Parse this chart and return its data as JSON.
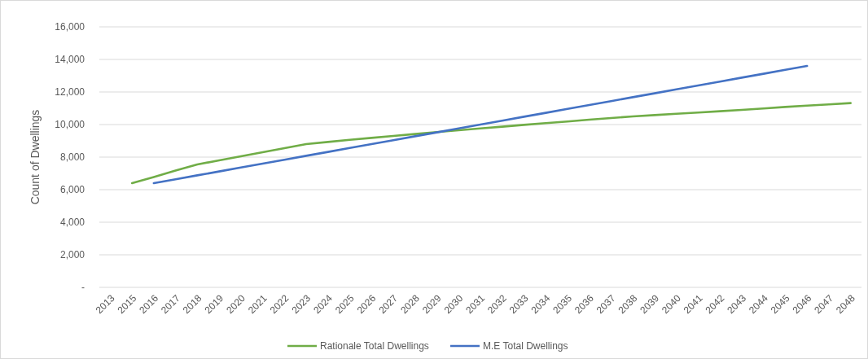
{
  "chart_data": {
    "type": "line",
    "ylabel": "Count of Dwellings",
    "categories": [
      "2013",
      "2015",
      "2016",
      "2017",
      "2018",
      "2019",
      "2020",
      "2021",
      "2022",
      "2023",
      "2024",
      "2025",
      "2026",
      "2027",
      "2028",
      "2029",
      "2030",
      "2031",
      "2032",
      "2033",
      "2034",
      "2035",
      "2036",
      "2037",
      "2038",
      "2039",
      "2040",
      "2041",
      "2042",
      "2043",
      "2044",
      "2045",
      "2046",
      "2047",
      "2048"
    ],
    "series": [
      {
        "name": "Rationale Total Dwellings",
        "color": "#70ad47",
        "values": [
          null,
          6400,
          6780,
          7170,
          7550,
          7800,
          8050,
          8300,
          8550,
          8800,
          8930,
          9060,
          9180,
          9300,
          9420,
          9540,
          9650,
          9760,
          9870,
          9980,
          10090,
          10190,
          10300,
          10400,
          10500,
          10580,
          10660,
          10740,
          10820,
          10900,
          10990,
          11080,
          11160,
          11240,
          11320
        ]
      },
      {
        "name": "M.E Total Dwellings",
        "color": "#4472c4",
        "values": [
          null,
          null,
          6400,
          6640,
          6880,
          7120,
          7360,
          7600,
          7840,
          8080,
          8320,
          8560,
          8800,
          9040,
          9280,
          9520,
          9760,
          10000,
          10240,
          10480,
          10720,
          10960,
          11200,
          11440,
          11680,
          11920,
          12160,
          12400,
          12640,
          12880,
          13120,
          13360,
          13600,
          null,
          null
        ]
      }
    ],
    "ylim": [
      0,
      16000
    ],
    "yticks": [
      {
        "value": 0,
        "label": "-"
      },
      {
        "value": 2000,
        "label": "2,000"
      },
      {
        "value": 4000,
        "label": "4,000"
      },
      {
        "value": 6000,
        "label": "6,000"
      },
      {
        "value": 8000,
        "label": "8,000"
      },
      {
        "value": 10000,
        "label": "10,000"
      },
      {
        "value": 12000,
        "label": "12,000"
      },
      {
        "value": 14000,
        "label": "14,000"
      },
      {
        "value": 16000,
        "label": "16,000"
      }
    ],
    "grid": "y",
    "legend": "bottom",
    "marker": "none",
    "line_style": "solid"
  }
}
